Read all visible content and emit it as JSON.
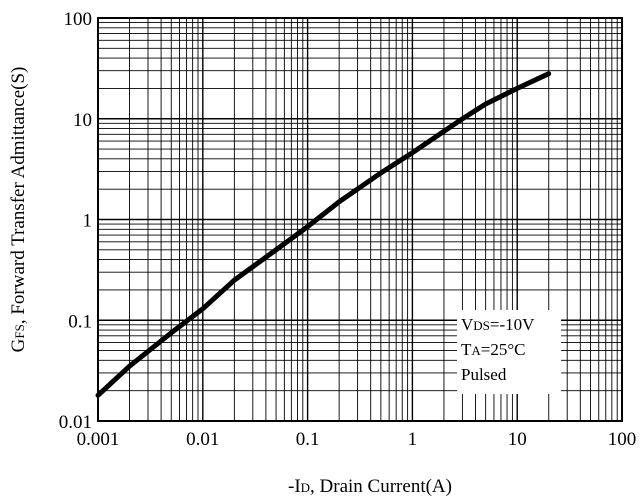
{
  "chart_data": {
    "type": "line",
    "x_scale": "log",
    "y_scale": "log",
    "xlim": [
      0.001,
      100
    ],
    "ylim": [
      0.01,
      100
    ],
    "grid": true,
    "x_ticks": [
      "0.001",
      "0.01",
      "0.1",
      "1",
      "10",
      "100"
    ],
    "y_ticks": [
      "0.01",
      "0.1",
      "1",
      "10",
      "100"
    ],
    "xlabel": {
      "prefix": "-I",
      "sub": "D",
      "rest": ", Drain Current(A)"
    },
    "ylabel": {
      "prefix": "G",
      "sub": "FS",
      "rest": ", Forward Transfer Admittance(S)"
    },
    "conditions": [
      {
        "prefix": "V",
        "sub": "DS",
        "rest": "=-10V"
      },
      {
        "prefix": "T",
        "sub": "A",
        "rest": "=25°C"
      },
      {
        "prefix": "Pulsed",
        "sub": "",
        "rest": ""
      }
    ],
    "series": [
      {
        "color": "#000000",
        "x": [
          0.001,
          0.002,
          0.005,
          0.01,
          0.02,
          0.05,
          0.1,
          0.2,
          0.5,
          1,
          2,
          3,
          5,
          10,
          20
        ],
        "y": [
          0.018,
          0.035,
          0.075,
          0.13,
          0.25,
          0.5,
          0.85,
          1.5,
          2.9,
          4.6,
          7.5,
          10,
          14,
          20,
          28
        ]
      }
    ]
  }
}
